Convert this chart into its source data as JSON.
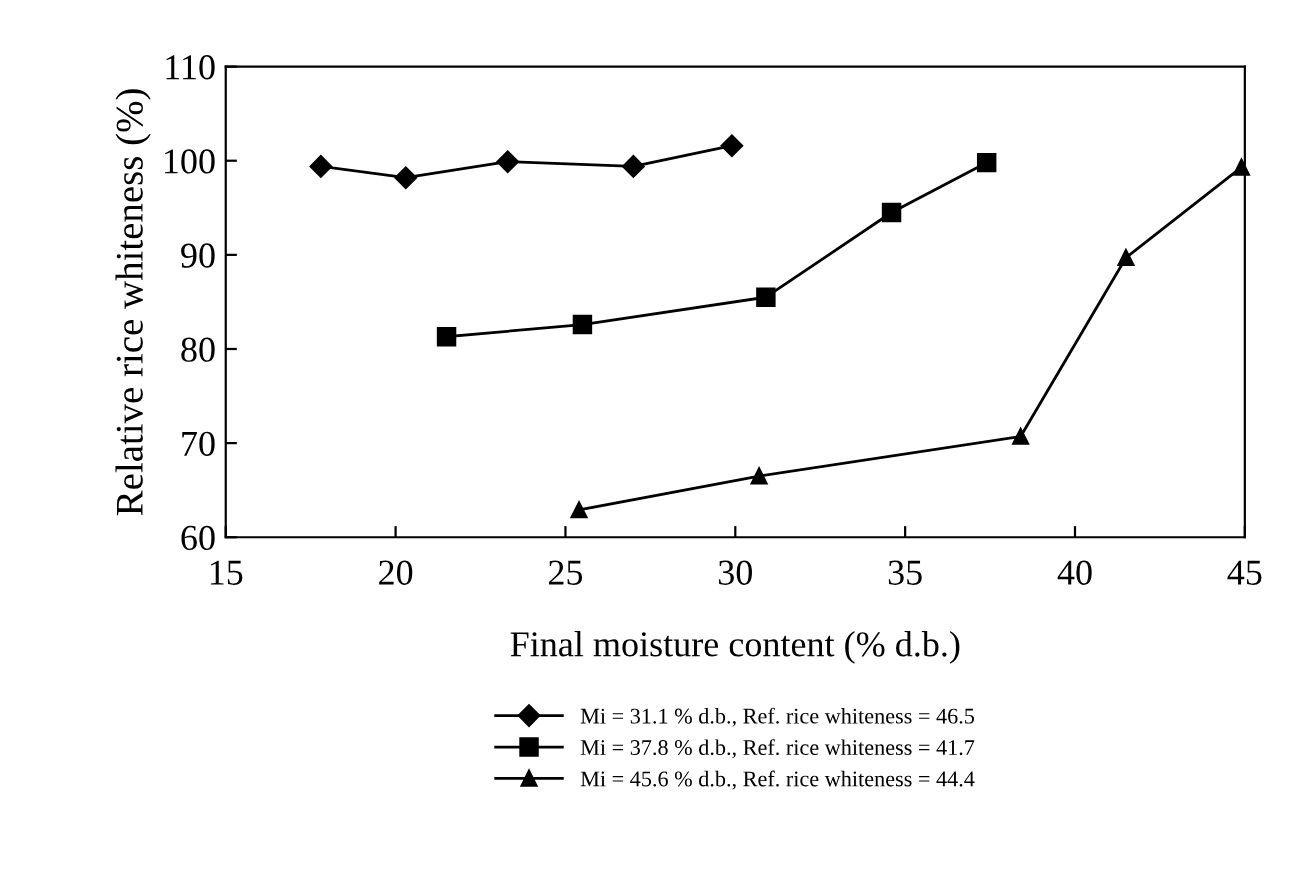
{
  "chart_data": {
    "type": "line",
    "xlabel": "Final moisture content (% d.b.)",
    "ylabel": "Relative rice whiteness (%)",
    "xlim": [
      15,
      45
    ],
    "ylim": [
      60,
      110
    ],
    "xticks": [
      15,
      20,
      25,
      30,
      35,
      40,
      45
    ],
    "yticks": [
      60,
      70,
      80,
      90,
      100,
      110
    ],
    "grid": false,
    "legend": "bottom",
    "series": [
      {
        "name": "Mi = 31.1 % d.b., Ref. rice whiteness = 46.5",
        "color": "#000000",
        "marker": "diamond",
        "x": [
          17.8,
          20.3,
          23.3,
          27.0,
          29.9
        ],
        "values": [
          99.4,
          98.2,
          99.9,
          99.4,
          101.6
        ]
      },
      {
        "name": "Mi = 37.8 % d.b., Ref. rice whiteness = 41.7",
        "color": "#000000",
        "marker": "square",
        "x": [
          21.5,
          25.5,
          30.9,
          34.6,
          37.4
        ],
        "values": [
          81.3,
          82.6,
          85.5,
          94.5,
          99.8
        ]
      },
      {
        "name": "Mi = 45.6 % d.b., Ref. rice whiteness = 44.4",
        "color": "#000000",
        "marker": "triangle",
        "x": [
          25.4,
          30.7,
          38.4,
          41.5,
          44.9
        ],
        "values": [
          62.9,
          66.5,
          70.7,
          89.7,
          99.3
        ]
      }
    ]
  }
}
